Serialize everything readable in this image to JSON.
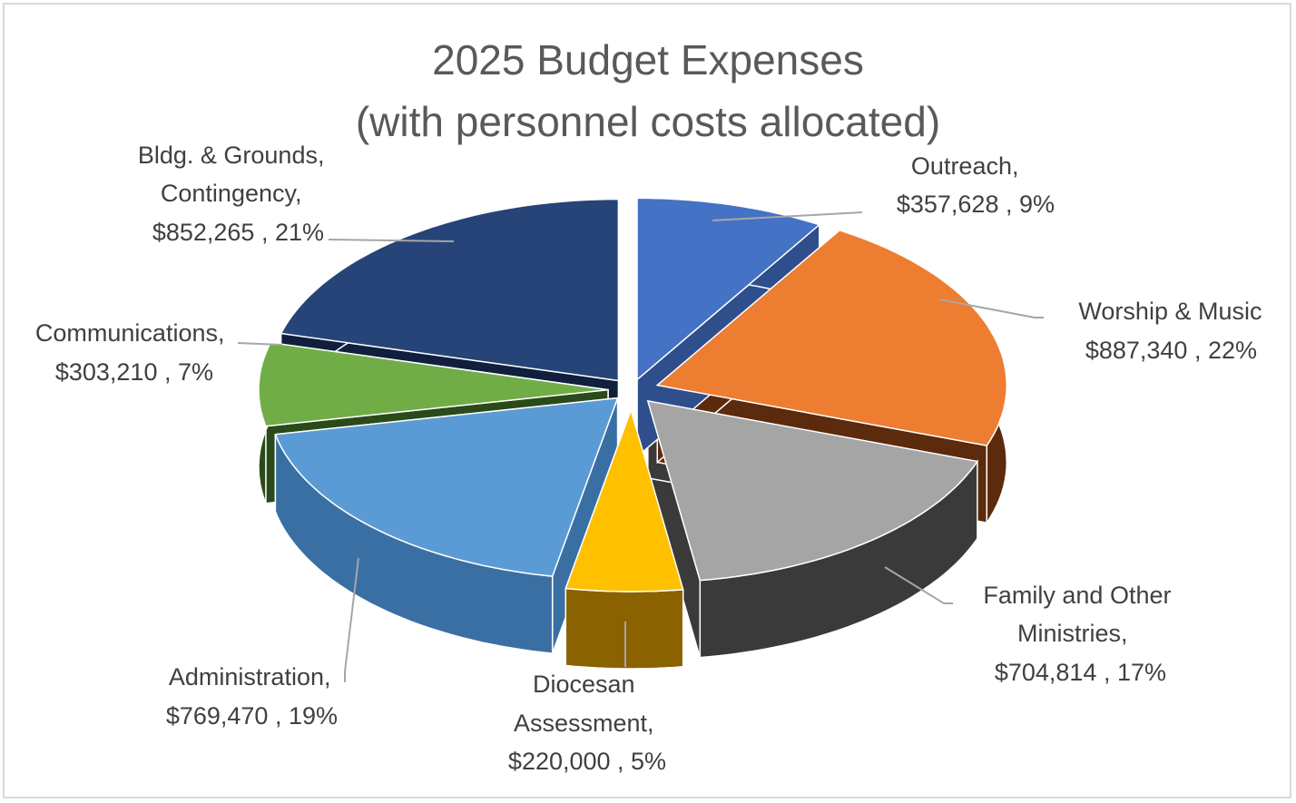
{
  "chart_data": {
    "type": "pie",
    "title_lines": [
      "2025 Budget Expenses",
      "(with personnel costs allocated)"
    ],
    "unit": "USD",
    "slices": [
      {
        "key": "outreach",
        "label": "Outreach,",
        "value": 357628,
        "value_text": "$357,628 , 9%",
        "percent": 9,
        "color": "#4472c4",
        "side_color": "#2e4f8c"
      },
      {
        "key": "worship",
        "label": "Worship & Music",
        "value": 887340,
        "value_text": "$887,340 , 22%",
        "percent": 22,
        "color": "#ed7d31",
        "side_color": "#5c2a0c"
      },
      {
        "key": "family",
        "label": "Family and Other Ministries,",
        "value": 704814,
        "value_text": "$704,814 , 17%",
        "percent": 17,
        "color": "#a5a5a5",
        "side_color": "#3a3a3a"
      },
      {
        "key": "diocesan",
        "label": "Diocesan Assessment,",
        "value": 220000,
        "value_text": "$220,000 , 5%",
        "percent": 5,
        "color": "#ffc000",
        "side_color": "#8a6300"
      },
      {
        "key": "administration",
        "label": "Administration,",
        "value": 769470,
        "value_text": "$769,470 , 19%",
        "percent": 19,
        "color": "#5b9bd5",
        "side_color": "#3a6fa3"
      },
      {
        "key": "communications",
        "label": "Communications,",
        "value": 303210,
        "value_text": "$303,210 , 7%",
        "percent": 7,
        "color": "#70ad47",
        "side_color": "#2a4a1a"
      },
      {
        "key": "bldg",
        "label": "Bldg. & Grounds, Contingency,",
        "value": 852265,
        "value_text": "$852,265 , 21%",
        "percent": 21,
        "color": "#264478",
        "side_color": "#0f1f3d"
      }
    ],
    "legend": "none",
    "data_labels": "outside with leader lines",
    "style": "3d exploded pie"
  }
}
